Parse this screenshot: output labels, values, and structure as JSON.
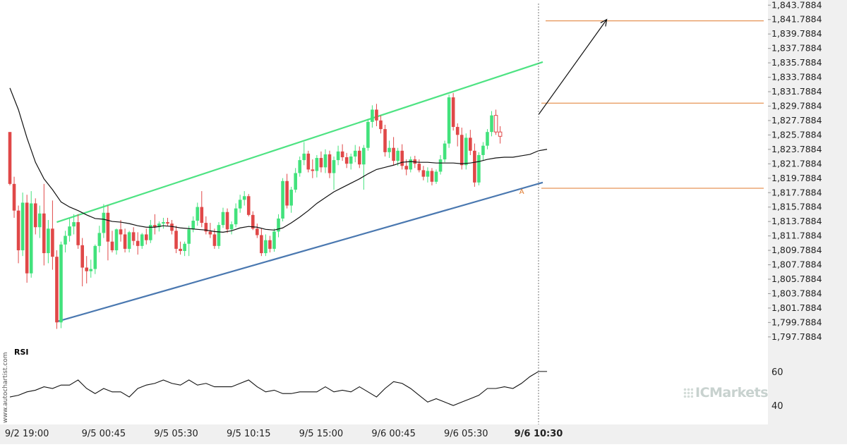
{
  "colors": {
    "up": "#42e27c",
    "down": "#e04848",
    "upper_channel": "#4ee383",
    "lower_channel": "#4a78b0",
    "target_line": "#e07a2d",
    "ma": "#111111",
    "axis_bg": "#f0f0f0"
  },
  "watermark": "www.autochartist.com",
  "brand_logo": "ICMarkets",
  "chart_data": {
    "type": "candlestick",
    "y_ticks": [
      "1,843.7884",
      "1,841.7884",
      "1,839.7884",
      "1,837.7884",
      "1,835.7884",
      "1,833.7884",
      "1,831.7884",
      "1,829.7884",
      "1,827.7884",
      "1,825.7884",
      "1,823.7884",
      "1,821.7884",
      "1,819.7884",
      "1,817.7884",
      "1,815.7884",
      "1,813.7884",
      "1,811.7884",
      "1,809.7884",
      "1,807.7884",
      "1,805.7884",
      "1,803.7884",
      "1,801.7884",
      "1,799.7884",
      "1,797.7884"
    ],
    "ylim": [
      1796.6,
      1844.5
    ],
    "x_ticks": [
      {
        "label": "9/2 19:00",
        "index": 4,
        "bold": false
      },
      {
        "label": "9/5 00:45",
        "index": 22,
        "bold": false
      },
      {
        "label": "9/5 05:30",
        "index": 39,
        "bold": false
      },
      {
        "label": "9/5 10:15",
        "index": 56,
        "bold": false
      },
      {
        "label": "9/5 15:00",
        "index": 73,
        "bold": false
      },
      {
        "label": "9/6 00:45",
        "index": 90,
        "bold": false
      },
      {
        "label": "9/6 05:30",
        "index": 107,
        "bold": false
      },
      {
        "label": "9/6 10:30",
        "index": 124,
        "bold": true
      }
    ],
    "candles": [
      [
        1826.2,
        1826.0,
        1818.8,
        1819.0
      ],
      [
        1819.0,
        1820.0,
        1814.3,
        1815.3
      ],
      [
        1815.3,
        1816.0,
        1808.0,
        1809.8
      ],
      [
        1809.8,
        1817.8,
        1809.0,
        1816.4
      ],
      [
        1816.4,
        1817.5,
        1805.3,
        1806.6
      ],
      [
        1806.6,
        1818.0,
        1806.0,
        1816.3
      ],
      [
        1816.3,
        1817.0,
        1812.0,
        1813.0
      ],
      [
        1813.0,
        1816.0,
        1811.5,
        1814.9
      ],
      [
        1814.9,
        1819.0,
        1807.7,
        1809.4
      ],
      [
        1809.4,
        1814.0,
        1808.0,
        1812.8
      ],
      [
        1812.8,
        1816.7,
        1807.1,
        1808.9
      ],
      [
        1808.9,
        1809.8,
        1798.9,
        1799.8
      ],
      [
        1799.8,
        1811.0,
        1799.0,
        1810.6
      ],
      [
        1810.6,
        1812.5,
        1809.5,
        1811.8
      ],
      [
        1811.8,
        1814.2,
        1811.0,
        1813.1
      ],
      [
        1813.1,
        1814.8,
        1812.0,
        1813.7
      ],
      [
        1813.7,
        1814.8,
        1810.0,
        1810.5
      ],
      [
        1810.5,
        1811.5,
        1804.8,
        1807.4
      ],
      [
        1807.4,
        1809.0,
        1805.2,
        1806.9
      ],
      [
        1806.9,
        1808.5,
        1806.0,
        1807.2
      ],
      [
        1807.2,
        1810.6,
        1806.5,
        1810.4
      ],
      [
        1810.4,
        1813.2,
        1809.5,
        1812.2
      ],
      [
        1812.2,
        1816.2,
        1811.5,
        1815.0
      ],
      [
        1815.0,
        1816.0,
        1808.4,
        1811.0
      ],
      [
        1811.0,
        1812.5,
        1809.5,
        1809.8
      ],
      [
        1809.8,
        1812.8,
        1809.2,
        1812.7
      ],
      [
        1812.7,
        1814.0,
        1811.0,
        1812.0
      ],
      [
        1812.0,
        1812.8,
        1809.5,
        1810.0
      ],
      [
        1810.0,
        1812.5,
        1809.5,
        1812.3
      ],
      [
        1812.3,
        1813.0,
        1810.5,
        1811.1
      ],
      [
        1811.1,
        1812.3,
        1809.2,
        1810.4
      ],
      [
        1810.4,
        1812.2,
        1810.0,
        1812.0
      ],
      [
        1812.0,
        1812.8,
        1810.6,
        1811.2
      ],
      [
        1811.2,
        1814.0,
        1810.8,
        1813.3
      ],
      [
        1813.3,
        1814.8,
        1812.0,
        1813.0
      ],
      [
        1813.0,
        1813.8,
        1812.4,
        1813.5
      ],
      [
        1813.5,
        1814.3,
        1812.8,
        1813.7
      ],
      [
        1813.7,
        1814.3,
        1813.2,
        1813.5
      ],
      [
        1813.5,
        1814.0,
        1812.0,
        1812.5
      ],
      [
        1812.5,
        1813.2,
        1809.4,
        1810.0
      ],
      [
        1810.0,
        1811.0,
        1809.2,
        1809.7
      ],
      [
        1809.7,
        1811.0,
        1809.0,
        1810.7
      ],
      [
        1810.7,
        1813.2,
        1809.0,
        1812.7
      ],
      [
        1812.7,
        1814.5,
        1812.3,
        1813.9
      ],
      [
        1813.9,
        1816.4,
        1813.2,
        1815.8
      ],
      [
        1815.8,
        1818.0,
        1813.0,
        1813.6
      ],
      [
        1813.6,
        1814.5,
        1812.0,
        1812.4
      ],
      [
        1812.4,
        1813.6,
        1811.5,
        1812.0
      ],
      [
        1812.0,
        1812.8,
        1810.0,
        1810.4
      ],
      [
        1810.4,
        1813.7,
        1810.0,
        1813.3
      ],
      [
        1813.3,
        1815.7,
        1812.9,
        1815.1
      ],
      [
        1815.1,
        1815.6,
        1812.2,
        1812.7
      ],
      [
        1812.7,
        1813.8,
        1812.0,
        1813.4
      ],
      [
        1813.4,
        1816.3,
        1813.0,
        1815.6
      ],
      [
        1815.6,
        1817.5,
        1815.0,
        1816.8
      ],
      [
        1816.8,
        1818.0,
        1816.0,
        1817.3
      ],
      [
        1817.3,
        1817.6,
        1814.5,
        1814.7
      ],
      [
        1814.7,
        1815.2,
        1812.6,
        1812.8
      ],
      [
        1812.8,
        1813.5,
        1811.5,
        1811.9
      ],
      [
        1811.9,
        1812.8,
        1809.0,
        1809.4
      ],
      [
        1809.4,
        1812.0,
        1809.0,
        1811.2
      ],
      [
        1811.2,
        1811.8,
        1809.5,
        1810.0
      ],
      [
        1810.0,
        1812.8,
        1809.6,
        1812.4
      ],
      [
        1812.4,
        1814.8,
        1811.6,
        1814.2
      ],
      [
        1814.2,
        1819.8,
        1813.8,
        1819.4
      ],
      [
        1819.4,
        1820.4,
        1815.6,
        1816.0
      ],
      [
        1816.0,
        1818.6,
        1815.0,
        1818.2
      ],
      [
        1818.2,
        1821.2,
        1817.8,
        1820.5
      ],
      [
        1820.5,
        1822.8,
        1820.0,
        1822.3
      ],
      [
        1822.3,
        1824.8,
        1821.6,
        1823.2
      ],
      [
        1823.2,
        1823.6,
        1820.6,
        1821.0
      ],
      [
        1821.0,
        1822.4,
        1819.8,
        1820.8
      ],
      [
        1820.8,
        1823.0,
        1819.9,
        1822.6
      ],
      [
        1822.6,
        1823.5,
        1820.6,
        1821.3
      ],
      [
        1821.3,
        1823.8,
        1820.5,
        1823.1
      ],
      [
        1823.1,
        1823.6,
        1819.8,
        1820.5
      ],
      [
        1820.5,
        1822.8,
        1818.2,
        1822.3
      ],
      [
        1822.3,
        1824.3,
        1821.6,
        1823.5
      ],
      [
        1823.5,
        1824.5,
        1822.2,
        1822.7
      ],
      [
        1822.7,
        1823.3,
        1821.2,
        1821.8
      ],
      [
        1821.8,
        1823.2,
        1821.0,
        1822.8
      ],
      [
        1822.8,
        1824.4,
        1822.0,
        1823.6
      ],
      [
        1823.6,
        1824.2,
        1821.2,
        1821.7
      ],
      [
        1821.7,
        1824.4,
        1818.2,
        1824.0
      ],
      [
        1824.0,
        1828.0,
        1823.6,
        1827.6
      ],
      [
        1827.6,
        1829.9,
        1826.8,
        1829.3
      ],
      [
        1829.3,
        1830.1,
        1827.0,
        1827.8
      ],
      [
        1827.8,
        1828.5,
        1826.0,
        1826.6
      ],
      [
        1826.6,
        1827.2,
        1822.8,
        1823.4
      ],
      [
        1823.4,
        1825.0,
        1822.6,
        1824.0
      ],
      [
        1824.0,
        1825.5,
        1821.6,
        1822.2
      ],
      [
        1822.2,
        1824.0,
        1821.5,
        1823.6
      ],
      [
        1823.6,
        1824.5,
        1821.0,
        1821.5
      ],
      [
        1821.5,
        1822.4,
        1820.2,
        1821.0
      ],
      [
        1821.0,
        1822.8,
        1820.6,
        1822.4
      ],
      [
        1822.4,
        1822.9,
        1821.2,
        1821.8
      ],
      [
        1821.8,
        1822.4,
        1820.6,
        1820.9
      ],
      [
        1820.9,
        1821.5,
        1819.5,
        1820.0
      ],
      [
        1820.0,
        1821.3,
        1819.2,
        1820.8
      ],
      [
        1820.8,
        1821.2,
        1818.8,
        1819.3
      ],
      [
        1819.3,
        1821.0,
        1819.0,
        1820.7
      ],
      [
        1820.7,
        1823.0,
        1820.3,
        1822.4
      ],
      [
        1822.4,
        1825.0,
        1822.0,
        1824.6
      ],
      [
        1824.6,
        1831.4,
        1824.0,
        1831.0
      ],
      [
        1831.0,
        1831.6,
        1826.4,
        1826.9
      ],
      [
        1826.9,
        1827.4,
        1824.2,
        1825.8
      ],
      [
        1825.8,
        1826.8,
        1821.0,
        1821.6
      ],
      [
        1821.6,
        1826.0,
        1821.0,
        1825.4
      ],
      [
        1825.4,
        1826.5,
        1823.0,
        1823.6
      ],
      [
        1823.6,
        1824.6,
        1818.6,
        1819.2
      ],
      [
        1819.2,
        1823.4,
        1818.8,
        1823.0
      ],
      [
        1823.0,
        1824.8,
        1822.2,
        1824.3
      ],
      [
        1824.3,
        1826.6,
        1823.8,
        1826.2
      ],
      [
        1826.2,
        1829.1,
        1825.6,
        1828.5
      ],
      [
        1828.5,
        1829.3,
        1825.8,
        1826.2
      ],
      [
        1826.2,
        1827.0,
        1824.6,
        1825.6
      ]
    ],
    "ma_line": [
      [
        0,
        1832.3
      ],
      [
        2,
        1829.3
      ],
      [
        4,
        1825.4
      ],
      [
        6,
        1822.0
      ],
      [
        8,
        1819.7
      ],
      [
        10,
        1818.2
      ],
      [
        12,
        1816.5
      ],
      [
        14,
        1815.8
      ],
      [
        16,
        1815.3
      ],
      [
        18,
        1814.7
      ],
      [
        20,
        1814.2
      ],
      [
        22,
        1814.1
      ],
      [
        24,
        1813.8
      ],
      [
        26,
        1813.7
      ],
      [
        28,
        1813.5
      ],
      [
        30,
        1813.2
      ],
      [
        32,
        1813.0
      ],
      [
        34,
        1813.0
      ],
      [
        36,
        1813.2
      ],
      [
        38,
        1813.1
      ],
      [
        40,
        1812.9
      ],
      [
        42,
        1812.8
      ],
      [
        44,
        1812.7
      ],
      [
        46,
        1812.6
      ],
      [
        48,
        1812.4
      ],
      [
        50,
        1812.3
      ],
      [
        52,
        1812.5
      ],
      [
        54,
        1812.9
      ],
      [
        56,
        1813.1
      ],
      [
        58,
        1813.0
      ],
      [
        60,
        1812.7
      ],
      [
        62,
        1812.6
      ],
      [
        64,
        1812.9
      ],
      [
        66,
        1813.6
      ],
      [
        68,
        1814.4
      ],
      [
        70,
        1815.3
      ],
      [
        72,
        1816.3
      ],
      [
        74,
        1817.1
      ],
      [
        76,
        1817.9
      ],
      [
        78,
        1818.5
      ],
      [
        80,
        1819.1
      ],
      [
        82,
        1819.7
      ],
      [
        84,
        1820.4
      ],
      [
        86,
        1821.0
      ],
      [
        88,
        1821.3
      ],
      [
        90,
        1821.6
      ],
      [
        92,
        1822.0
      ],
      [
        94,
        1822.1
      ],
      [
        96,
        1822.0
      ],
      [
        98,
        1822.0
      ],
      [
        100,
        1821.9
      ],
      [
        102,
        1821.9
      ],
      [
        104,
        1821.9
      ],
      [
        106,
        1821.8
      ],
      [
        108,
        1821.9
      ],
      [
        110,
        1822.1
      ],
      [
        112,
        1822.4
      ],
      [
        114,
        1822.6
      ],
      [
        116,
        1822.7
      ],
      [
        118,
        1822.7
      ],
      [
        120,
        1822.9
      ],
      [
        122,
        1823.1
      ],
      [
        124,
        1823.6
      ],
      [
        126,
        1823.8
      ]
    ],
    "channel": {
      "upper": [
        [
          11,
          1813.7
        ],
        [
          125,
          1835.9
        ]
      ],
      "lower": [
        [
          11,
          1799.9
        ],
        [
          125,
          1819.2
        ]
      ]
    },
    "projection_arrow": [
      [
        124,
        1828.6
      ],
      [
        140,
        1841.8
      ]
    ],
    "target_levels": [
      {
        "value": 1841.6,
        "from_index": 125
      },
      {
        "value": 1830.2,
        "from_index": 124
      },
      {
        "value": 1818.4,
        "from_index": 124
      }
    ],
    "current_index": 124,
    "pattern_point": {
      "label": "A",
      "index": 120
    },
    "rsi": {
      "label": "RSI",
      "ticks": [
        "60",
        "40"
      ],
      "ylim": [
        33,
        67
      ],
      "values": [
        [
          0,
          45
        ],
        [
          2,
          46
        ],
        [
          4,
          48
        ],
        [
          6,
          49
        ],
        [
          8,
          51
        ],
        [
          10,
          50
        ],
        [
          12,
          52
        ],
        [
          14,
          52
        ],
        [
          16,
          55
        ],
        [
          18,
          50
        ],
        [
          20,
          47
        ],
        [
          22,
          50
        ],
        [
          24,
          48
        ],
        [
          26,
          48
        ],
        [
          28,
          45
        ],
        [
          30,
          50
        ],
        [
          32,
          52
        ],
        [
          34,
          53
        ],
        [
          36,
          55
        ],
        [
          38,
          53
        ],
        [
          40,
          52
        ],
        [
          42,
          55
        ],
        [
          44,
          52
        ],
        [
          46,
          53
        ],
        [
          48,
          51
        ],
        [
          50,
          51
        ],
        [
          52,
          51
        ],
        [
          54,
          53
        ],
        [
          56,
          55
        ],
        [
          58,
          51
        ],
        [
          60,
          48
        ],
        [
          62,
          49
        ],
        [
          64,
          47
        ],
        [
          66,
          47
        ],
        [
          68,
          48
        ],
        [
          70,
          48
        ],
        [
          72,
          48
        ],
        [
          74,
          51
        ],
        [
          76,
          48
        ],
        [
          78,
          49
        ],
        [
          80,
          48
        ],
        [
          82,
          51
        ],
        [
          84,
          48
        ],
        [
          86,
          45
        ],
        [
          88,
          50
        ],
        [
          90,
          54
        ],
        [
          92,
          53
        ],
        [
          94,
          50
        ],
        [
          96,
          46
        ],
        [
          98,
          42
        ],
        [
          100,
          44
        ],
        [
          102,
          42
        ],
        [
          104,
          40
        ],
        [
          106,
          42
        ],
        [
          108,
          44
        ],
        [
          110,
          46
        ],
        [
          112,
          50
        ],
        [
          114,
          50
        ],
        [
          116,
          51
        ],
        [
          118,
          50
        ],
        [
          120,
          53
        ],
        [
          122,
          57
        ],
        [
          124,
          60
        ],
        [
          126,
          60
        ]
      ]
    }
  }
}
